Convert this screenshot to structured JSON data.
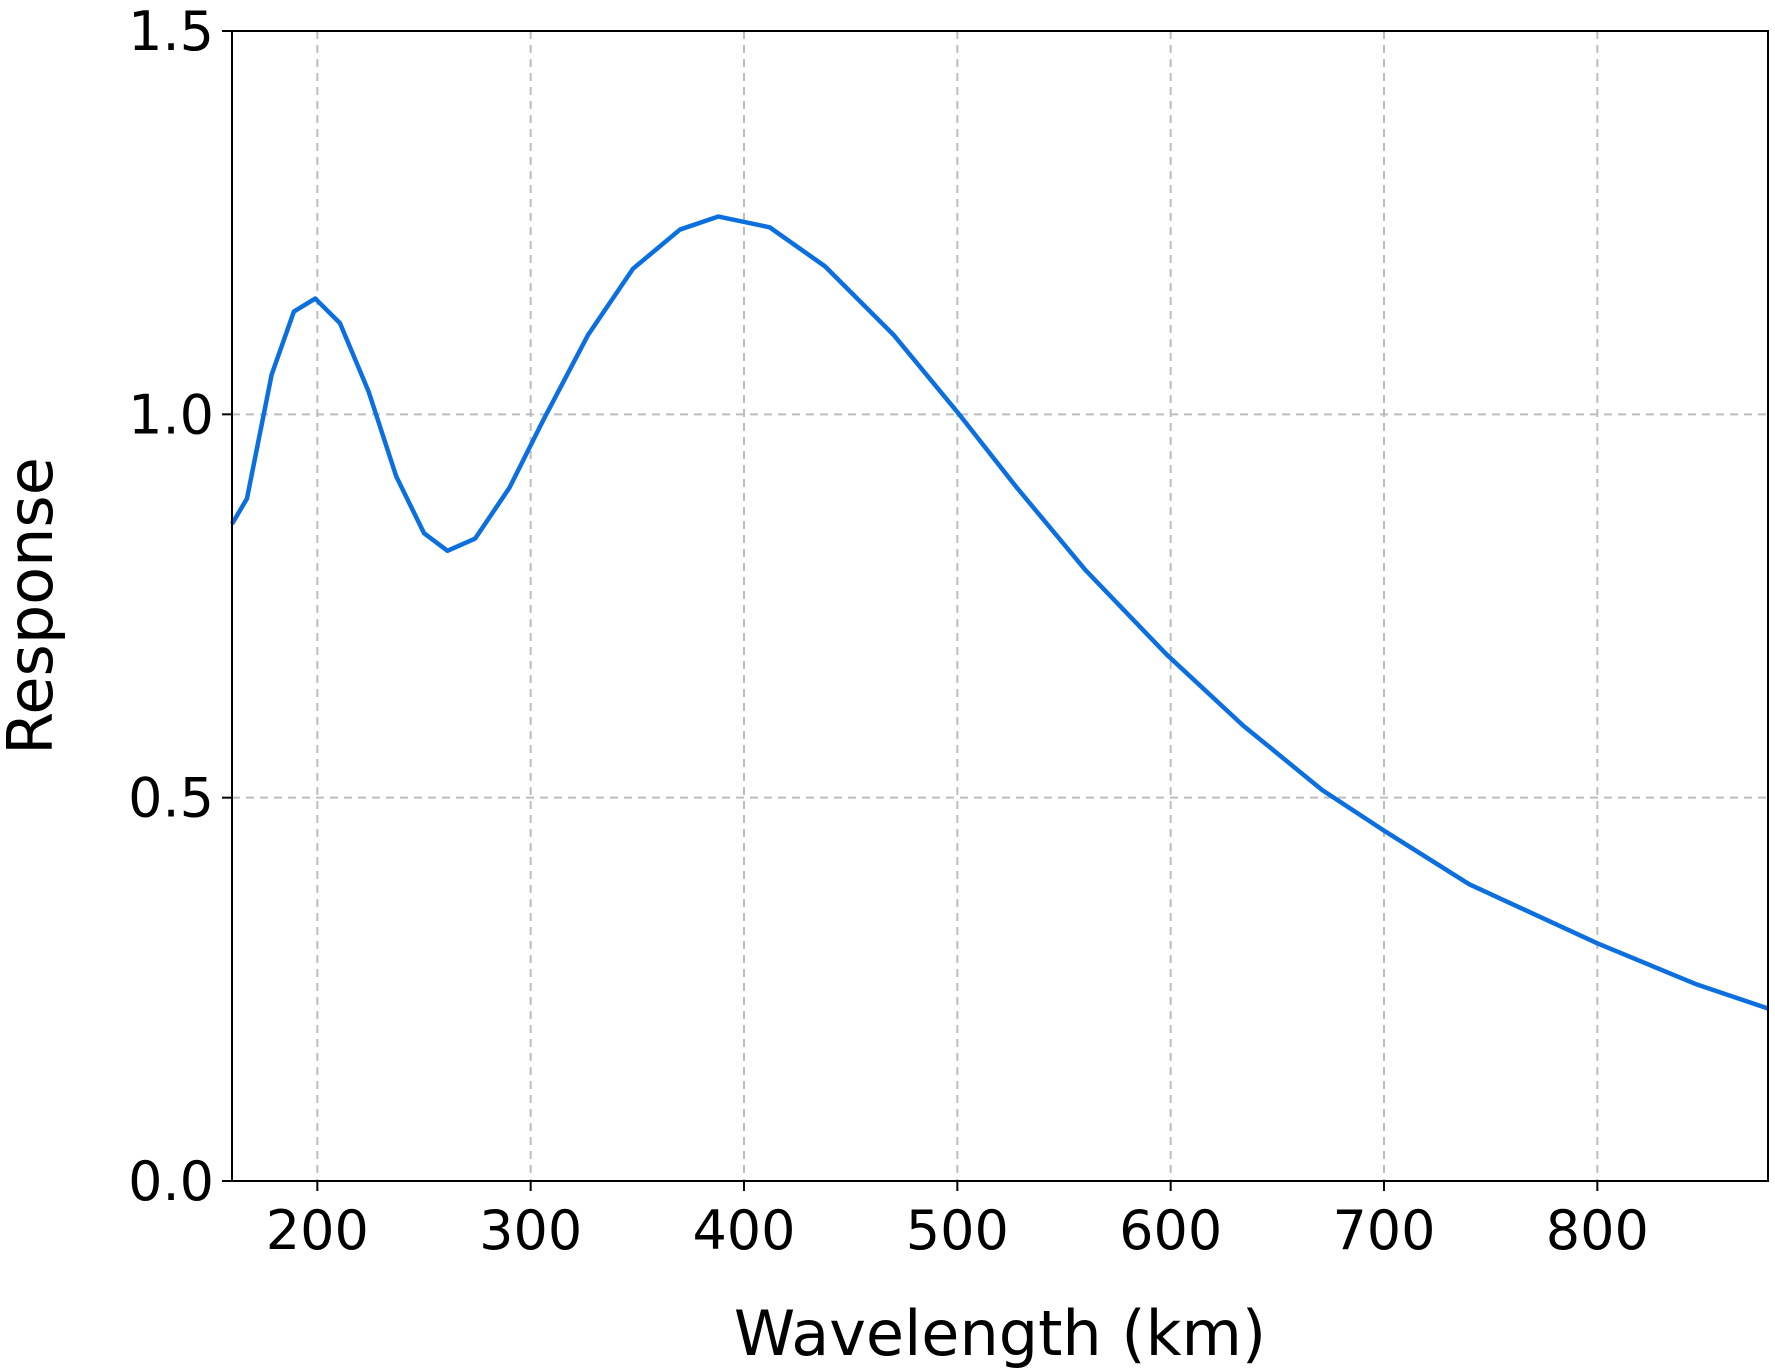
{
  "chart_data": {
    "type": "line",
    "xlabel": "Wavelength (km)",
    "ylabel": "Response",
    "x": [
      160,
      167,
      178.6,
      189,
      199,
      210.6,
      224,
      237,
      250,
      261,
      274,
      290,
      306,
      327,
      348,
      370,
      388,
      412,
      438,
      470,
      500,
      528,
      560,
      598,
      634,
      671,
      700,
      740,
      800,
      846,
      880
    ],
    "series": [
      {
        "color": "#0c6fe0",
        "values": [
          0.857,
          0.89,
          1.052,
          1.134,
          1.151,
          1.119,
          1.03,
          0.919,
          0.845,
          0.822,
          0.838,
          0.904,
          0.993,
          1.104,
          1.19,
          1.241,
          1.258,
          1.244,
          1.193,
          1.104,
          1.003,
          0.904,
          0.797,
          0.687,
          0.594,
          0.51,
          0.457,
          0.387,
          0.31,
          0.257,
          0.225
        ]
      }
    ],
    "xlim": [
      160,
      880
    ],
    "xticks": [
      200,
      300,
      400,
      500,
      600,
      700,
      800
    ],
    "ylim": [
      0,
      1.5
    ],
    "yticks": [
      {
        "value": 0,
        "label": "0.0"
      },
      0.5,
      {
        "value": 1,
        "label": "1.0"
      },
      1.5
    ],
    "grid": true
  }
}
